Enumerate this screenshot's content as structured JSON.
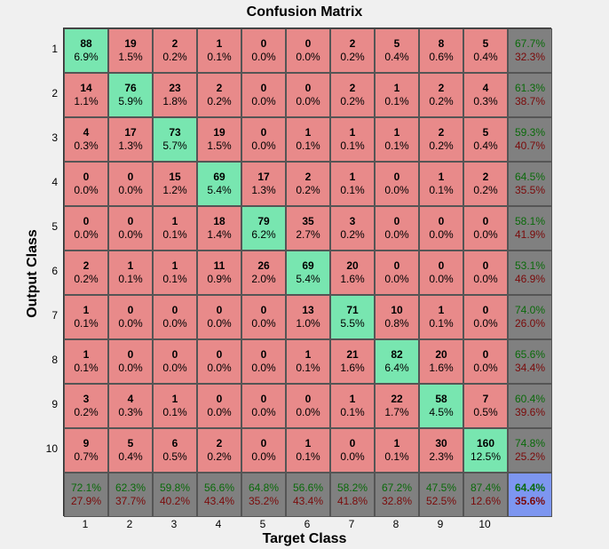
{
  "chart_data": {
    "type": "heatmap",
    "title": "Confusion Matrix",
    "xlabel": "Target Class",
    "ylabel": "Output Class",
    "x_ticks": [
      "1",
      "2",
      "3",
      "4",
      "5",
      "6",
      "7",
      "8",
      "9",
      "10"
    ],
    "y_ticks": [
      "1",
      "2",
      "3",
      "4",
      "5",
      "6",
      "7",
      "8",
      "9",
      "10"
    ],
    "counts": [
      [
        88,
        19,
        2,
        1,
        0,
        0,
        2,
        5,
        8,
        5
      ],
      [
        14,
        76,
        23,
        2,
        0,
        0,
        2,
        1,
        2,
        4
      ],
      [
        4,
        17,
        73,
        19,
        0,
        1,
        1,
        1,
        2,
        5
      ],
      [
        0,
        0,
        15,
        69,
        17,
        2,
        1,
        0,
        1,
        2
      ],
      [
        0,
        0,
        1,
        18,
        79,
        35,
        3,
        0,
        0,
        0
      ],
      [
        2,
        1,
        1,
        11,
        26,
        69,
        20,
        0,
        0,
        0
      ],
      [
        1,
        0,
        0,
        0,
        0,
        13,
        71,
        10,
        1,
        0
      ],
      [
        1,
        0,
        0,
        0,
        0,
        1,
        21,
        82,
        20,
        0
      ],
      [
        3,
        4,
        1,
        0,
        0,
        0,
        1,
        22,
        58,
        7
      ],
      [
        9,
        5,
        6,
        2,
        0,
        1,
        0,
        1,
        30,
        160
      ]
    ],
    "percents": [
      [
        "6.9%",
        "1.5%",
        "0.2%",
        "0.1%",
        "0.0%",
        "0.0%",
        "0.2%",
        "0.4%",
        "0.6%",
        "0.4%"
      ],
      [
        "1.1%",
        "5.9%",
        "1.8%",
        "0.2%",
        "0.0%",
        "0.0%",
        "0.2%",
        "0.1%",
        "0.2%",
        "0.3%"
      ],
      [
        "0.3%",
        "1.3%",
        "5.7%",
        "1.5%",
        "0.0%",
        "0.1%",
        "0.1%",
        "0.1%",
        "0.2%",
        "0.4%"
      ],
      [
        "0.0%",
        "0.0%",
        "1.2%",
        "5.4%",
        "1.3%",
        "0.2%",
        "0.1%",
        "0.0%",
        "0.1%",
        "0.2%"
      ],
      [
        "0.0%",
        "0.0%",
        "0.1%",
        "1.4%",
        "6.2%",
        "2.7%",
        "0.2%",
        "0.0%",
        "0.0%",
        "0.0%"
      ],
      [
        "0.2%",
        "0.1%",
        "0.1%",
        "0.9%",
        "2.0%",
        "5.4%",
        "1.6%",
        "0.0%",
        "0.0%",
        "0.0%"
      ],
      [
        "0.1%",
        "0.0%",
        "0.0%",
        "0.0%",
        "0.0%",
        "1.0%",
        "5.5%",
        "0.8%",
        "0.1%",
        "0.0%"
      ],
      [
        "0.1%",
        "0.0%",
        "0.0%",
        "0.0%",
        "0.0%",
        "0.1%",
        "1.6%",
        "6.4%",
        "1.6%",
        "0.0%"
      ],
      [
        "0.2%",
        "0.3%",
        "0.1%",
        "0.0%",
        "0.0%",
        "0.0%",
        "0.1%",
        "1.7%",
        "4.5%",
        "0.5%"
      ],
      [
        "0.7%",
        "0.4%",
        "0.5%",
        "0.2%",
        "0.0%",
        "0.1%",
        "0.0%",
        "0.1%",
        "2.3%",
        "12.5%"
      ]
    ],
    "row_summary": [
      [
        "67.7%",
        "32.3%"
      ],
      [
        "61.3%",
        "38.7%"
      ],
      [
        "59.3%",
        "40.7%"
      ],
      [
        "64.5%",
        "35.5%"
      ],
      [
        "58.1%",
        "41.9%"
      ],
      [
        "53.1%",
        "46.9%"
      ],
      [
        "74.0%",
        "26.0%"
      ],
      [
        "65.6%",
        "34.4%"
      ],
      [
        "60.4%",
        "39.6%"
      ],
      [
        "74.8%",
        "25.2%"
      ]
    ],
    "col_summary": [
      [
        "72.1%",
        "27.9%"
      ],
      [
        "62.3%",
        "37.7%"
      ],
      [
        "59.8%",
        "40.2%"
      ],
      [
        "56.6%",
        "43.4%"
      ],
      [
        "64.8%",
        "35.2%"
      ],
      [
        "56.6%",
        "43.4%"
      ],
      [
        "58.2%",
        "41.8%"
      ],
      [
        "67.2%",
        "32.8%"
      ],
      [
        "47.5%",
        "52.5%"
      ],
      [
        "87.4%",
        "12.6%"
      ]
    ],
    "overall": [
      "64.4%",
      "35.6%"
    ],
    "colors": {
      "correct": "#78e6b0",
      "incorrect": "#e88a8a",
      "summary": "#808080",
      "overall": "#7d96f0",
      "accuracy_text": "#0a6a0a",
      "error_text": "#7a0a0a"
    }
  }
}
